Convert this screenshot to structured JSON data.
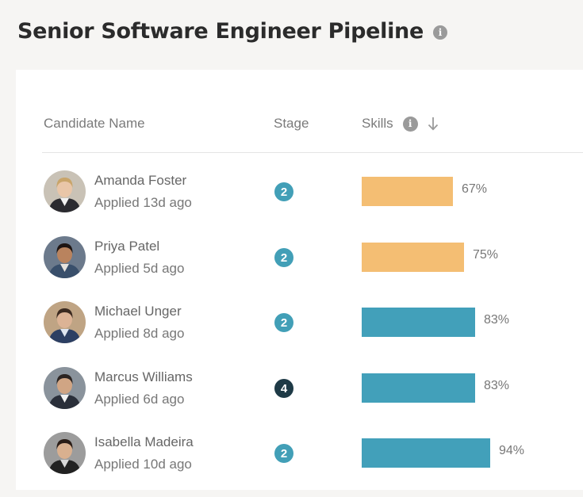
{
  "page": {
    "title": "Senior Software Engineer Pipeline"
  },
  "table": {
    "headers": {
      "name": "Candidate Name",
      "stage": "Stage",
      "skills": "Skills"
    },
    "rows": [
      {
        "name": "Amanda Foster",
        "applied": "Applied 13d ago",
        "stage": "2",
        "skills_pct": "67%",
        "skills_value": 67,
        "bar_color": "#f4be73",
        "badge_color": "#429fb7",
        "avatar": "woman-blonde-suit"
      },
      {
        "name": "Priya Patel",
        "applied": "Applied 5d ago",
        "stage": "2",
        "skills_pct": "75%",
        "skills_value": 75,
        "bar_color": "#f4be73",
        "badge_color": "#429fb7",
        "avatar": "woman-dark-hair"
      },
      {
        "name": "Michael Unger",
        "applied": "Applied 8d ago",
        "stage": "2",
        "skills_pct": "83%",
        "skills_value": 83,
        "bar_color": "#42a0ba",
        "badge_color": "#429fb7",
        "avatar": "man-navy-suit"
      },
      {
        "name": "Marcus Williams",
        "applied": "Applied 6d ago",
        "stage": "4",
        "skills_pct": "83%",
        "skills_value": 83,
        "bar_color": "#42a0ba",
        "badge_color": "#1e3a46",
        "avatar": "man-dark-suit"
      },
      {
        "name": "Isabella Madeira",
        "applied": "Applied 10d ago",
        "stage": "2",
        "skills_pct": "94%",
        "skills_value": 94,
        "bar_color": "#42a0ba",
        "badge_color": "#429fb7",
        "avatar": "woman-dark-blazer"
      }
    ]
  },
  "colors": {
    "accent": "#429fb7",
    "bar_warning": "#f4be73",
    "bar_good": "#42a0ba",
    "badge_dark": "#1e3a46"
  },
  "icons": {
    "title_info": "info-icon",
    "skills_info": "info-icon",
    "sort": "arrow-down-icon"
  }
}
